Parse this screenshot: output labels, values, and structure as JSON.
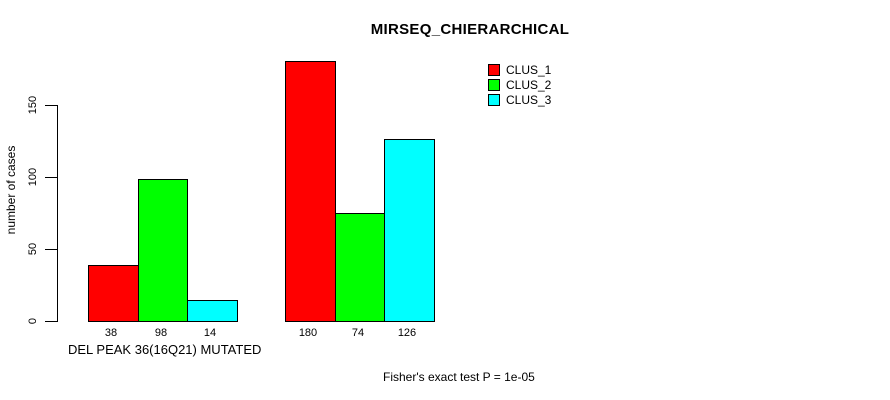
{
  "chart_data": {
    "type": "bar",
    "title": "MIRSEQ_CHIERARCHICAL",
    "ylabel": "number of cases",
    "xlabel": "DEL PEAK 36(16Q21) MUTATED",
    "annotation": "Fisher's exact test P = 1e-05",
    "yticks": [
      0,
      50,
      100,
      150
    ],
    "ylim": [
      0,
      150
    ],
    "grid": false,
    "bar_value_labels_shown": true,
    "group_count": 2,
    "series": [
      {
        "name": "CLUS_1",
        "color": "#ff0000",
        "values": [
          38,
          180
        ]
      },
      {
        "name": "CLUS_2",
        "color": "#00ff00",
        "values": [
          98,
          74
        ]
      },
      {
        "name": "CLUS_3",
        "color": "#00ffff",
        "values": [
          14,
          126
        ]
      }
    ],
    "legend": {
      "position": "top-right-inside",
      "entries": [
        "CLUS_1",
        "CLUS_2",
        "CLUS_3"
      ]
    },
    "axis_color": "#000000",
    "background_color": "#ffffff"
  }
}
